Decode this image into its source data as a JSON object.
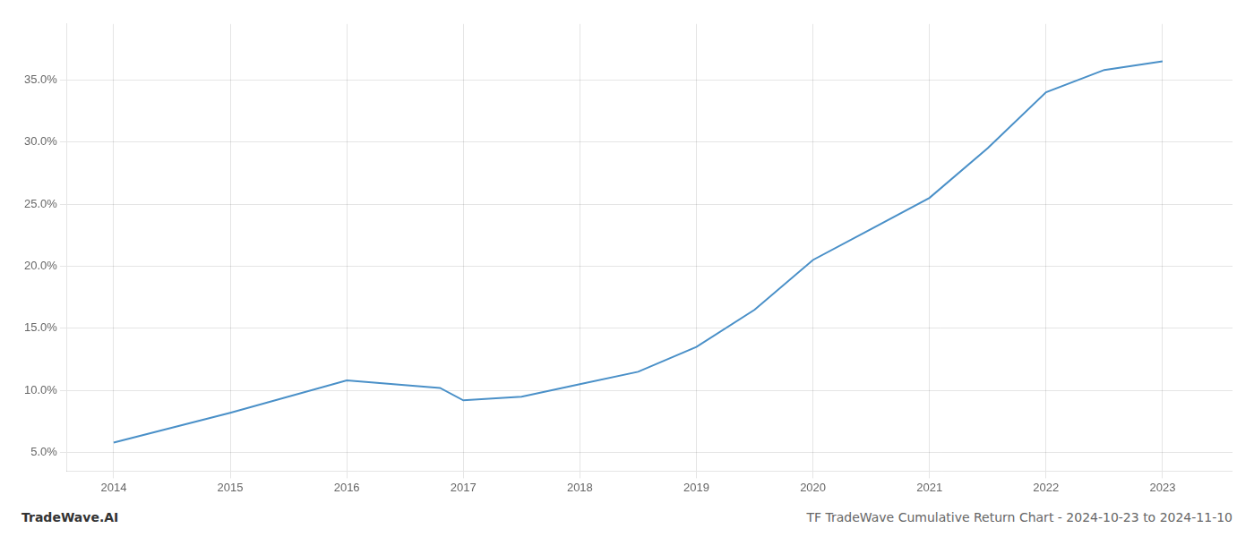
{
  "chart_data": {
    "type": "line",
    "title": "TF TradeWave Cumulative Return Chart - 2024-10-23 to 2024-11-10",
    "annotations": [
      "TradeWave.AI"
    ],
    "x": [
      2014,
      2015,
      2016,
      2016.8,
      2017,
      2017.5,
      2018,
      2018.5,
      2019,
      2019.5,
      2020,
      2020.5,
      2021,
      2021.5,
      2022,
      2022.5,
      2023
    ],
    "values": [
      5.8,
      8.2,
      10.8,
      10.2,
      9.2,
      9.5,
      10.5,
      11.5,
      13.5,
      16.5,
      20.5,
      23.0,
      25.5,
      29.5,
      34.0,
      35.8,
      36.5
    ],
    "color": "#4a90c8",
    "xlim": [
      2013.6,
      2023.6
    ],
    "xticks": [
      2014,
      2015,
      2016,
      2017,
      2018,
      2019,
      2020,
      2021,
      2022,
      2023
    ],
    "ylim": [
      3.5,
      39.5
    ],
    "yticks": [
      {
        "value": 5.0,
        "label": "5.0%"
      },
      {
        "value": 10.0,
        "label": "10.0%"
      },
      {
        "value": 15.0,
        "label": "15.0%"
      },
      {
        "value": 20.0,
        "label": "20.0%"
      },
      {
        "value": 25.0,
        "label": "25.0%"
      },
      {
        "value": 30.0,
        "label": "30.0%"
      },
      {
        "value": 35.0,
        "label": "35.0%"
      }
    ],
    "grid": true
  }
}
